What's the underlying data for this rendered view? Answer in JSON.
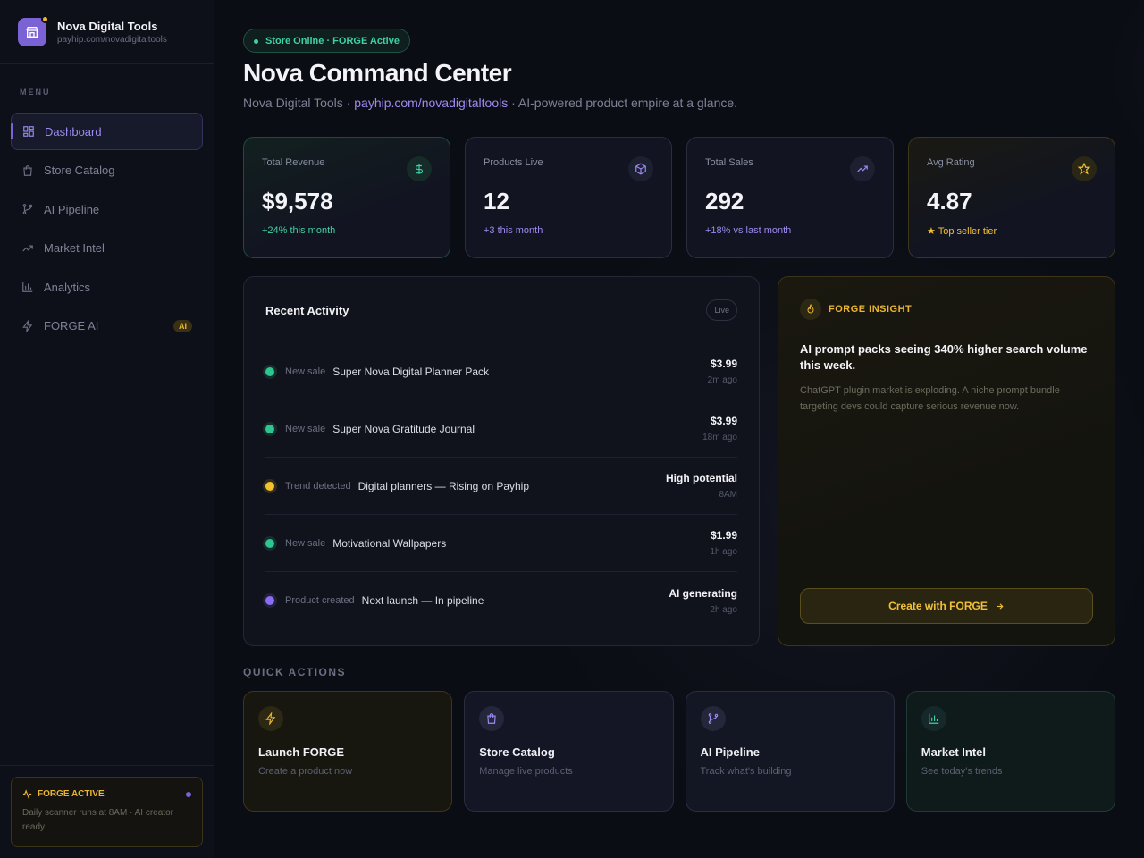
{
  "brand": {
    "name": "Nova Digital Tools",
    "url": "payhip.com/novadigitaltools"
  },
  "sidebar": {
    "menu_label": "MENU",
    "items": [
      {
        "label": "Dashboard",
        "icon": "grid-icon",
        "active": true
      },
      {
        "label": "Store Catalog",
        "icon": "shopping-bag-icon"
      },
      {
        "label": "AI Pipeline",
        "icon": "git-branch-icon"
      },
      {
        "label": "Market Intel",
        "icon": "trending-up-icon"
      },
      {
        "label": "Analytics",
        "icon": "bar-chart-icon"
      },
      {
        "label": "FORGE AI",
        "icon": "lightning-icon",
        "badge": "AI"
      }
    ],
    "footer": {
      "title": "FORGE ACTIVE",
      "text": "Daily scanner runs at 8AM · AI creator ready"
    }
  },
  "header": {
    "status": "Store Online · FORGE Active",
    "title": "Nova Command Center",
    "subtitle_prefix": "Nova Digital Tools · ",
    "subtitle_link": "payhip.com/novadigitaltools",
    "subtitle_suffix": " · AI-powered product empire at a glance."
  },
  "stats": [
    {
      "label": "Total Revenue",
      "value": "$9,578",
      "delta": "+24% this month",
      "icon": "dollar-icon",
      "color": "#3fd0a3"
    },
    {
      "label": "Products Live",
      "value": "12",
      "delta": "+3 this month",
      "icon": "box-icon",
      "color": "#9d8af0"
    },
    {
      "label": "Total Sales",
      "value": "292",
      "delta": "+18% vs last month",
      "icon": "trending-up-icon",
      "color": "#9d8af0"
    },
    {
      "label": "Avg Rating",
      "value": "4.87",
      "delta": "★ Top seller tier",
      "icon": "star-icon",
      "color": "#f0c03a"
    }
  ],
  "activity": {
    "title": "Recent Activity",
    "live_label": "Live",
    "rows": [
      {
        "type": "New sale",
        "name": "Super Nova Digital Planner Pack",
        "amount": "$3.99",
        "time": "2m ago",
        "kind": "sale"
      },
      {
        "type": "New sale",
        "name": "Super Nova Gratitude Journal",
        "amount": "$3.99",
        "time": "18m ago",
        "kind": "sale"
      },
      {
        "type": "Trend detected",
        "name": "Digital planners — Rising on Payhip",
        "amount": "High potential",
        "time": "8AM",
        "kind": "trend"
      },
      {
        "type": "New sale",
        "name": "Motivational Wallpapers",
        "amount": "$1.99",
        "time": "1h ago",
        "kind": "sale"
      },
      {
        "type": "Product created",
        "name": "Next launch — In pipeline",
        "amount": "AI generating",
        "time": "2h ago",
        "kind": "product"
      }
    ]
  },
  "insight": {
    "label": "FORGE INSIGHT",
    "title": "AI prompt packs seeing 340% higher search volume this week.",
    "text": "ChatGPT plugin market is exploding. A niche prompt bundle targeting devs could capture serious revenue now.",
    "button": "Create with FORGE"
  },
  "quick_actions": {
    "label": "QUICK ACTIONS",
    "items": [
      {
        "title": "Launch FORGE",
        "sub": "Create a product now",
        "icon": "lightning-icon"
      },
      {
        "title": "Store Catalog",
        "sub": "Manage live products",
        "icon": "shopping-bag-icon"
      },
      {
        "title": "AI Pipeline",
        "sub": "Track what's building",
        "icon": "git-branch-icon"
      },
      {
        "title": "Market Intel",
        "sub": "See today's trends",
        "icon": "bar-chart-icon"
      }
    ]
  },
  "colors": {
    "accent": "#7b63d6",
    "success": "#3fd0a3",
    "gold": "#f0c03a"
  }
}
